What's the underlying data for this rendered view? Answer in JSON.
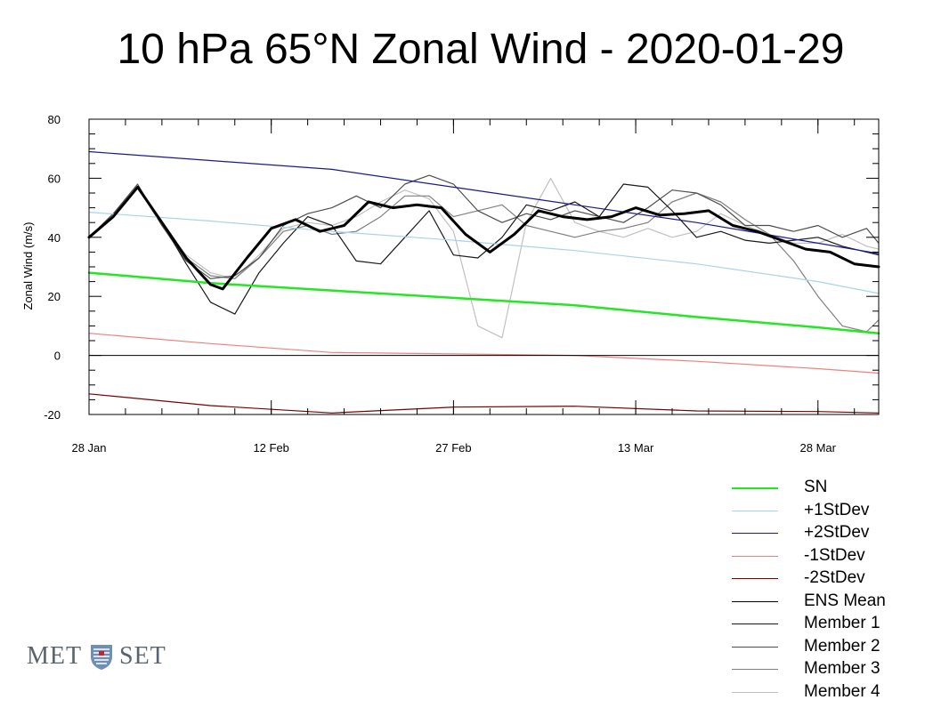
{
  "chart_data": {
    "type": "line",
    "title": "10 hPa 65°N Zonal Wind - 2020-01-29",
    "ylabel": "Zonal Wind (m/s)",
    "xlabel": "",
    "ylim": [
      -20,
      80
    ],
    "yticks": [
      80,
      60,
      40,
      20,
      0,
      -20
    ],
    "ytick_labels": [
      "80",
      "60",
      "40",
      "20",
      "0",
      "-20"
    ],
    "xlim": [
      "2020-01-28",
      "2020-04-02"
    ],
    "xtick_labels": [
      {
        "date": "2020-01-28",
        "label": "28 Jan"
      },
      {
        "date": "2020-02-12",
        "label": "12 Feb"
      },
      {
        "date": "2020-02-27",
        "label": "27 Feb"
      },
      {
        "date": "2020-03-13",
        "label": "13 Mar"
      },
      {
        "date": "2020-03-28",
        "label": "28 Mar"
      }
    ],
    "grid": false,
    "zero_line": true,
    "legend_position": "bottom-right",
    "series": [
      {
        "name": "SN",
        "color": "#22e822",
        "width": 2.5,
        "x": [
          "2020-01-28",
          "2020-02-07",
          "2020-02-17",
          "2020-02-27",
          "2020-03-08",
          "2020-03-18",
          "2020-03-28",
          "2020-04-02"
        ],
        "values": [
          28,
          24.5,
          22,
          19.5,
          17,
          13,
          9.5,
          7.5
        ]
      },
      {
        "name": "+1StDev",
        "color": "#a8d4e6",
        "width": 1.2,
        "x": [
          "2020-01-28",
          "2020-02-07",
          "2020-02-17",
          "2020-02-27",
          "2020-03-08",
          "2020-03-18",
          "2020-03-28",
          "2020-04-02"
        ],
        "values": [
          48.5,
          45.5,
          42,
          39,
          35.5,
          31,
          25,
          21
        ]
      },
      {
        "name": "+2StDev",
        "color": "#1a1a8c",
        "width": 1.2,
        "x": [
          "2020-01-28",
          "2020-02-07",
          "2020-02-17",
          "2020-02-27",
          "2020-03-08",
          "2020-03-18",
          "2020-03-28",
          "2020-04-02"
        ],
        "values": [
          69,
          66,
          63,
          57,
          51,
          45,
          38,
          34.5
        ]
      },
      {
        "name": "-1StDev",
        "color": "#f08080",
        "width": 1.2,
        "x": [
          "2020-01-28",
          "2020-02-07",
          "2020-02-17",
          "2020-02-27",
          "2020-03-08",
          "2020-03-18",
          "2020-03-28",
          "2020-04-02"
        ],
        "values": [
          7.5,
          4,
          1,
          0.5,
          0,
          -2,
          -4.5,
          -6
        ]
      },
      {
        "name": "-2StDev",
        "color": "#7a0000",
        "width": 1.2,
        "x": [
          "2020-01-28",
          "2020-02-07",
          "2020-02-17",
          "2020-02-27",
          "2020-03-08",
          "2020-03-18",
          "2020-03-28",
          "2020-04-02"
        ],
        "values": [
          -13,
          -17,
          -19.5,
          -17.5,
          -17.2,
          -18.8,
          -19,
          -19.5
        ]
      },
      {
        "name": "ENS Mean",
        "color": "#000000",
        "width": 3,
        "x": [
          "2020-01-28",
          "2020-01-30",
          "2020-02-01",
          "2020-02-03",
          "2020-02-05",
          "2020-02-07",
          "2020-02-08",
          "2020-02-10",
          "2020-02-12",
          "2020-02-14",
          "2020-02-16",
          "2020-02-18",
          "2020-02-20",
          "2020-02-22",
          "2020-02-24",
          "2020-02-26",
          "2020-02-28",
          "2020-03-01",
          "2020-03-03",
          "2020-03-05",
          "2020-03-07",
          "2020-03-09",
          "2020-03-11",
          "2020-03-13",
          "2020-03-15",
          "2020-03-17",
          "2020-03-19",
          "2020-03-21",
          "2020-03-23",
          "2020-03-25",
          "2020-03-27",
          "2020-03-29",
          "2020-03-31",
          "2020-04-02"
        ],
        "values": [
          40,
          47,
          57,
          45,
          33,
          24,
          22.5,
          33,
          43,
          46,
          42,
          44,
          52,
          50,
          51,
          50,
          41,
          35,
          41,
          49,
          47,
          46,
          47,
          50,
          47.5,
          48,
          49,
          44,
          42,
          39,
          36,
          35,
          31,
          30
        ]
      },
      {
        "name": "Member 1",
        "color": "#1a1a1a",
        "width": 1.2,
        "x": [
          "2020-01-28",
          "2020-01-30",
          "2020-02-01",
          "2020-02-03",
          "2020-02-05",
          "2020-02-07",
          "2020-02-09",
          "2020-02-11",
          "2020-02-13",
          "2020-02-15",
          "2020-02-17",
          "2020-02-19",
          "2020-02-21",
          "2020-02-23",
          "2020-02-25",
          "2020-02-27",
          "2020-02-29",
          "2020-03-02",
          "2020-03-04",
          "2020-03-06",
          "2020-03-08",
          "2020-03-10",
          "2020-03-12",
          "2020-03-14",
          "2020-03-16",
          "2020-03-18",
          "2020-03-20",
          "2020-03-22",
          "2020-03-24",
          "2020-03-26",
          "2020-03-28",
          "2020-03-30",
          "2020-04-01",
          "2020-04-02"
        ],
        "values": [
          40,
          47,
          57,
          45,
          31,
          18,
          14,
          28,
          38,
          47,
          44,
          32,
          31,
          40,
          49,
          34,
          33,
          40,
          51,
          49,
          52,
          47,
          58,
          57,
          49,
          40,
          42,
          39,
          38,
          39,
          40,
          37,
          35,
          34
        ]
      },
      {
        "name": "Member 2",
        "color": "#4d4d4d",
        "width": 1.2,
        "x": [
          "2020-01-28",
          "2020-01-30",
          "2020-02-01",
          "2020-02-03",
          "2020-02-05",
          "2020-02-07",
          "2020-02-09",
          "2020-02-11",
          "2020-02-13",
          "2020-02-15",
          "2020-02-17",
          "2020-02-19",
          "2020-02-21",
          "2020-02-23",
          "2020-02-25",
          "2020-02-27",
          "2020-02-29",
          "2020-03-02",
          "2020-03-04",
          "2020-03-06",
          "2020-03-08",
          "2020-03-10",
          "2020-03-12",
          "2020-03-14",
          "2020-03-16",
          "2020-03-18",
          "2020-03-20",
          "2020-03-22",
          "2020-03-24",
          "2020-03-26",
          "2020-03-28",
          "2020-03-30",
          "2020-04-01",
          "2020-04-02"
        ],
        "values": [
          40,
          48,
          58,
          44,
          32,
          26,
          27,
          33,
          44,
          48,
          50,
          54,
          50,
          58,
          61,
          58,
          49,
          45,
          48,
          46,
          49,
          47,
          45,
          50,
          56,
          55,
          51,
          44,
          44,
          42,
          44,
          40,
          43,
          38
        ]
      },
      {
        "name": "Member 3",
        "color": "#808080",
        "width": 1.2,
        "x": [
          "2020-01-28",
          "2020-01-30",
          "2020-02-01",
          "2020-02-03",
          "2020-02-05",
          "2020-02-07",
          "2020-02-09",
          "2020-02-11",
          "2020-02-13",
          "2020-02-15",
          "2020-02-17",
          "2020-02-19",
          "2020-02-21",
          "2020-02-23",
          "2020-02-25",
          "2020-02-27",
          "2020-02-29",
          "2020-03-02",
          "2020-03-04",
          "2020-03-06",
          "2020-03-08",
          "2020-03-10",
          "2020-03-12",
          "2020-03-14",
          "2020-03-16",
          "2020-03-18",
          "2020-03-20",
          "2020-03-22",
          "2020-03-24",
          "2020-03-26",
          "2020-03-28",
          "2020-03-30",
          "2020-04-01",
          "2020-04-02"
        ],
        "values": [
          40,
          48,
          57,
          44,
          33,
          27,
          26,
          33,
          42,
          44,
          41,
          42,
          47,
          54,
          54,
          47,
          49,
          51,
          44,
          42,
          40,
          42,
          43,
          45,
          52,
          55,
          52,
          46,
          41,
          32,
          20,
          10,
          8,
          12
        ]
      },
      {
        "name": "Member 4",
        "color": "#c0c0c0",
        "width": 1.2,
        "x": [
          "2020-01-28",
          "2020-01-30",
          "2020-02-01",
          "2020-02-03",
          "2020-02-05",
          "2020-02-07",
          "2020-02-09",
          "2020-02-11",
          "2020-02-13",
          "2020-02-15",
          "2020-02-17",
          "2020-02-19",
          "2020-02-21",
          "2020-02-23",
          "2020-02-25",
          "2020-02-27",
          "2020-02-29",
          "2020-03-02",
          "2020-03-04",
          "2020-03-06",
          "2020-03-08",
          "2020-03-10",
          "2020-03-12",
          "2020-03-14",
          "2020-03-16",
          "2020-03-18",
          "2020-03-20",
          "2020-03-22",
          "2020-03-24",
          "2020-03-26",
          "2020-03-28",
          "2020-03-30",
          "2020-04-01",
          "2020-04-02"
        ],
        "values": [
          40,
          48,
          57,
          44,
          34,
          28,
          26,
          34,
          43,
          45,
          44,
          47,
          52,
          56,
          53,
          42,
          10,
          6,
          45,
          60,
          45,
          42,
          40,
          43,
          40,
          42,
          48,
          44,
          41,
          38,
          38,
          41,
          37,
          36
        ]
      }
    ]
  },
  "logo": {
    "left_text": "MET",
    "right_text": "SET",
    "colors": {
      "text": "#5a6470",
      "shield_blue": "#6f8fb8",
      "shield_red": "#c0282d"
    }
  }
}
